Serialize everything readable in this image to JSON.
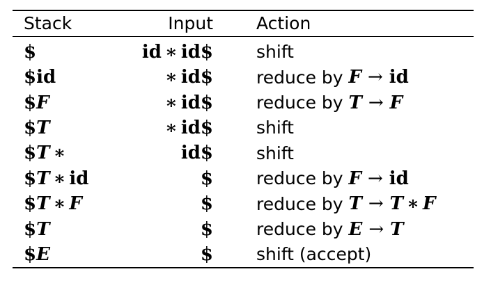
{
  "table": {
    "headers": {
      "stack": "Stack",
      "input": "Input",
      "action": "Action"
    },
    "rows": [
      {
        "stack": "$",
        "input": "id ∗ id$",
        "action": "shift"
      },
      {
        "stack": "$id",
        "input": "∗id$",
        "action": "reduce by F → id"
      },
      {
        "stack": "$F",
        "input": "∗id$",
        "action": "reduce by T → F"
      },
      {
        "stack": "$T",
        "input": "∗id$",
        "action": "shift"
      },
      {
        "stack": "$T∗",
        "input": "id$",
        "action": "shift"
      },
      {
        "stack": "$T ∗ id",
        "input": "$",
        "action": "reduce by F → id"
      },
      {
        "stack": "$T ∗ F",
        "input": "$",
        "action": "reduce by T → T ∗ F"
      },
      {
        "stack": "$T",
        "input": "$",
        "action": "reduce by E → T"
      },
      {
        "stack": "$E",
        "input": "$",
        "action": "shift (accept)"
      }
    ]
  }
}
